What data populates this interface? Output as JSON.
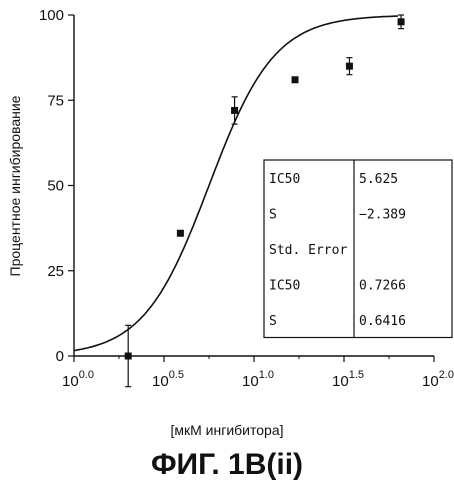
{
  "chart_data": {
    "type": "scatter",
    "title": "",
    "xlabel": "[мкМ ингибитора]",
    "ylabel": "Процентное ингибирование",
    "x_scale": "log10",
    "xlim_log10": [
      0.0,
      2.0
    ],
    "ylim": [
      0,
      100
    ],
    "x_ticks": [
      {
        "base": "10",
        "exp": "0.0",
        "log": 0.0
      },
      {
        "base": "10",
        "exp": "0.5",
        "log": 0.5
      },
      {
        "base": "10",
        "exp": "1.0",
        "log": 1.0
      },
      {
        "base": "10",
        "exp": "1.5",
        "log": 1.5
      },
      {
        "base": "10",
        "exp": "2.0",
        "log": 2.0
      }
    ],
    "y_ticks": [
      "0",
      "25",
      "50",
      "75",
      "100"
    ],
    "y_tick_values": [
      0,
      25,
      50,
      75,
      100
    ],
    "points": [
      {
        "x": 2.0,
        "y": 0,
        "err": 9
      },
      {
        "x": 3.9,
        "y": 36,
        "err": 0
      },
      {
        "x": 7.8,
        "y": 72,
        "err": 4
      },
      {
        "x": 16.9,
        "y": 81,
        "err": 0
      },
      {
        "x": 33.9,
        "y": 85,
        "err": 2.5
      },
      {
        "x": 65.6,
        "y": 98,
        "err": 2
      }
    ],
    "fit": {
      "model": "4PL",
      "ic50": 5.625,
      "slope": -2.389,
      "bottom": 0,
      "top": 100
    },
    "grid": false,
    "legend": "none"
  },
  "stats_table": {
    "rows": [
      {
        "label": "IC50",
        "value": "5.625"
      },
      {
        "label": "S",
        "value": "−2.389"
      },
      {
        "label": "Std. Error",
        "value": ""
      },
      {
        "label": "IC50",
        "value": "0.7266"
      },
      {
        "label": "S",
        "value": "0.6416"
      }
    ]
  },
  "caption": "ФИГ. 1B(ii)"
}
